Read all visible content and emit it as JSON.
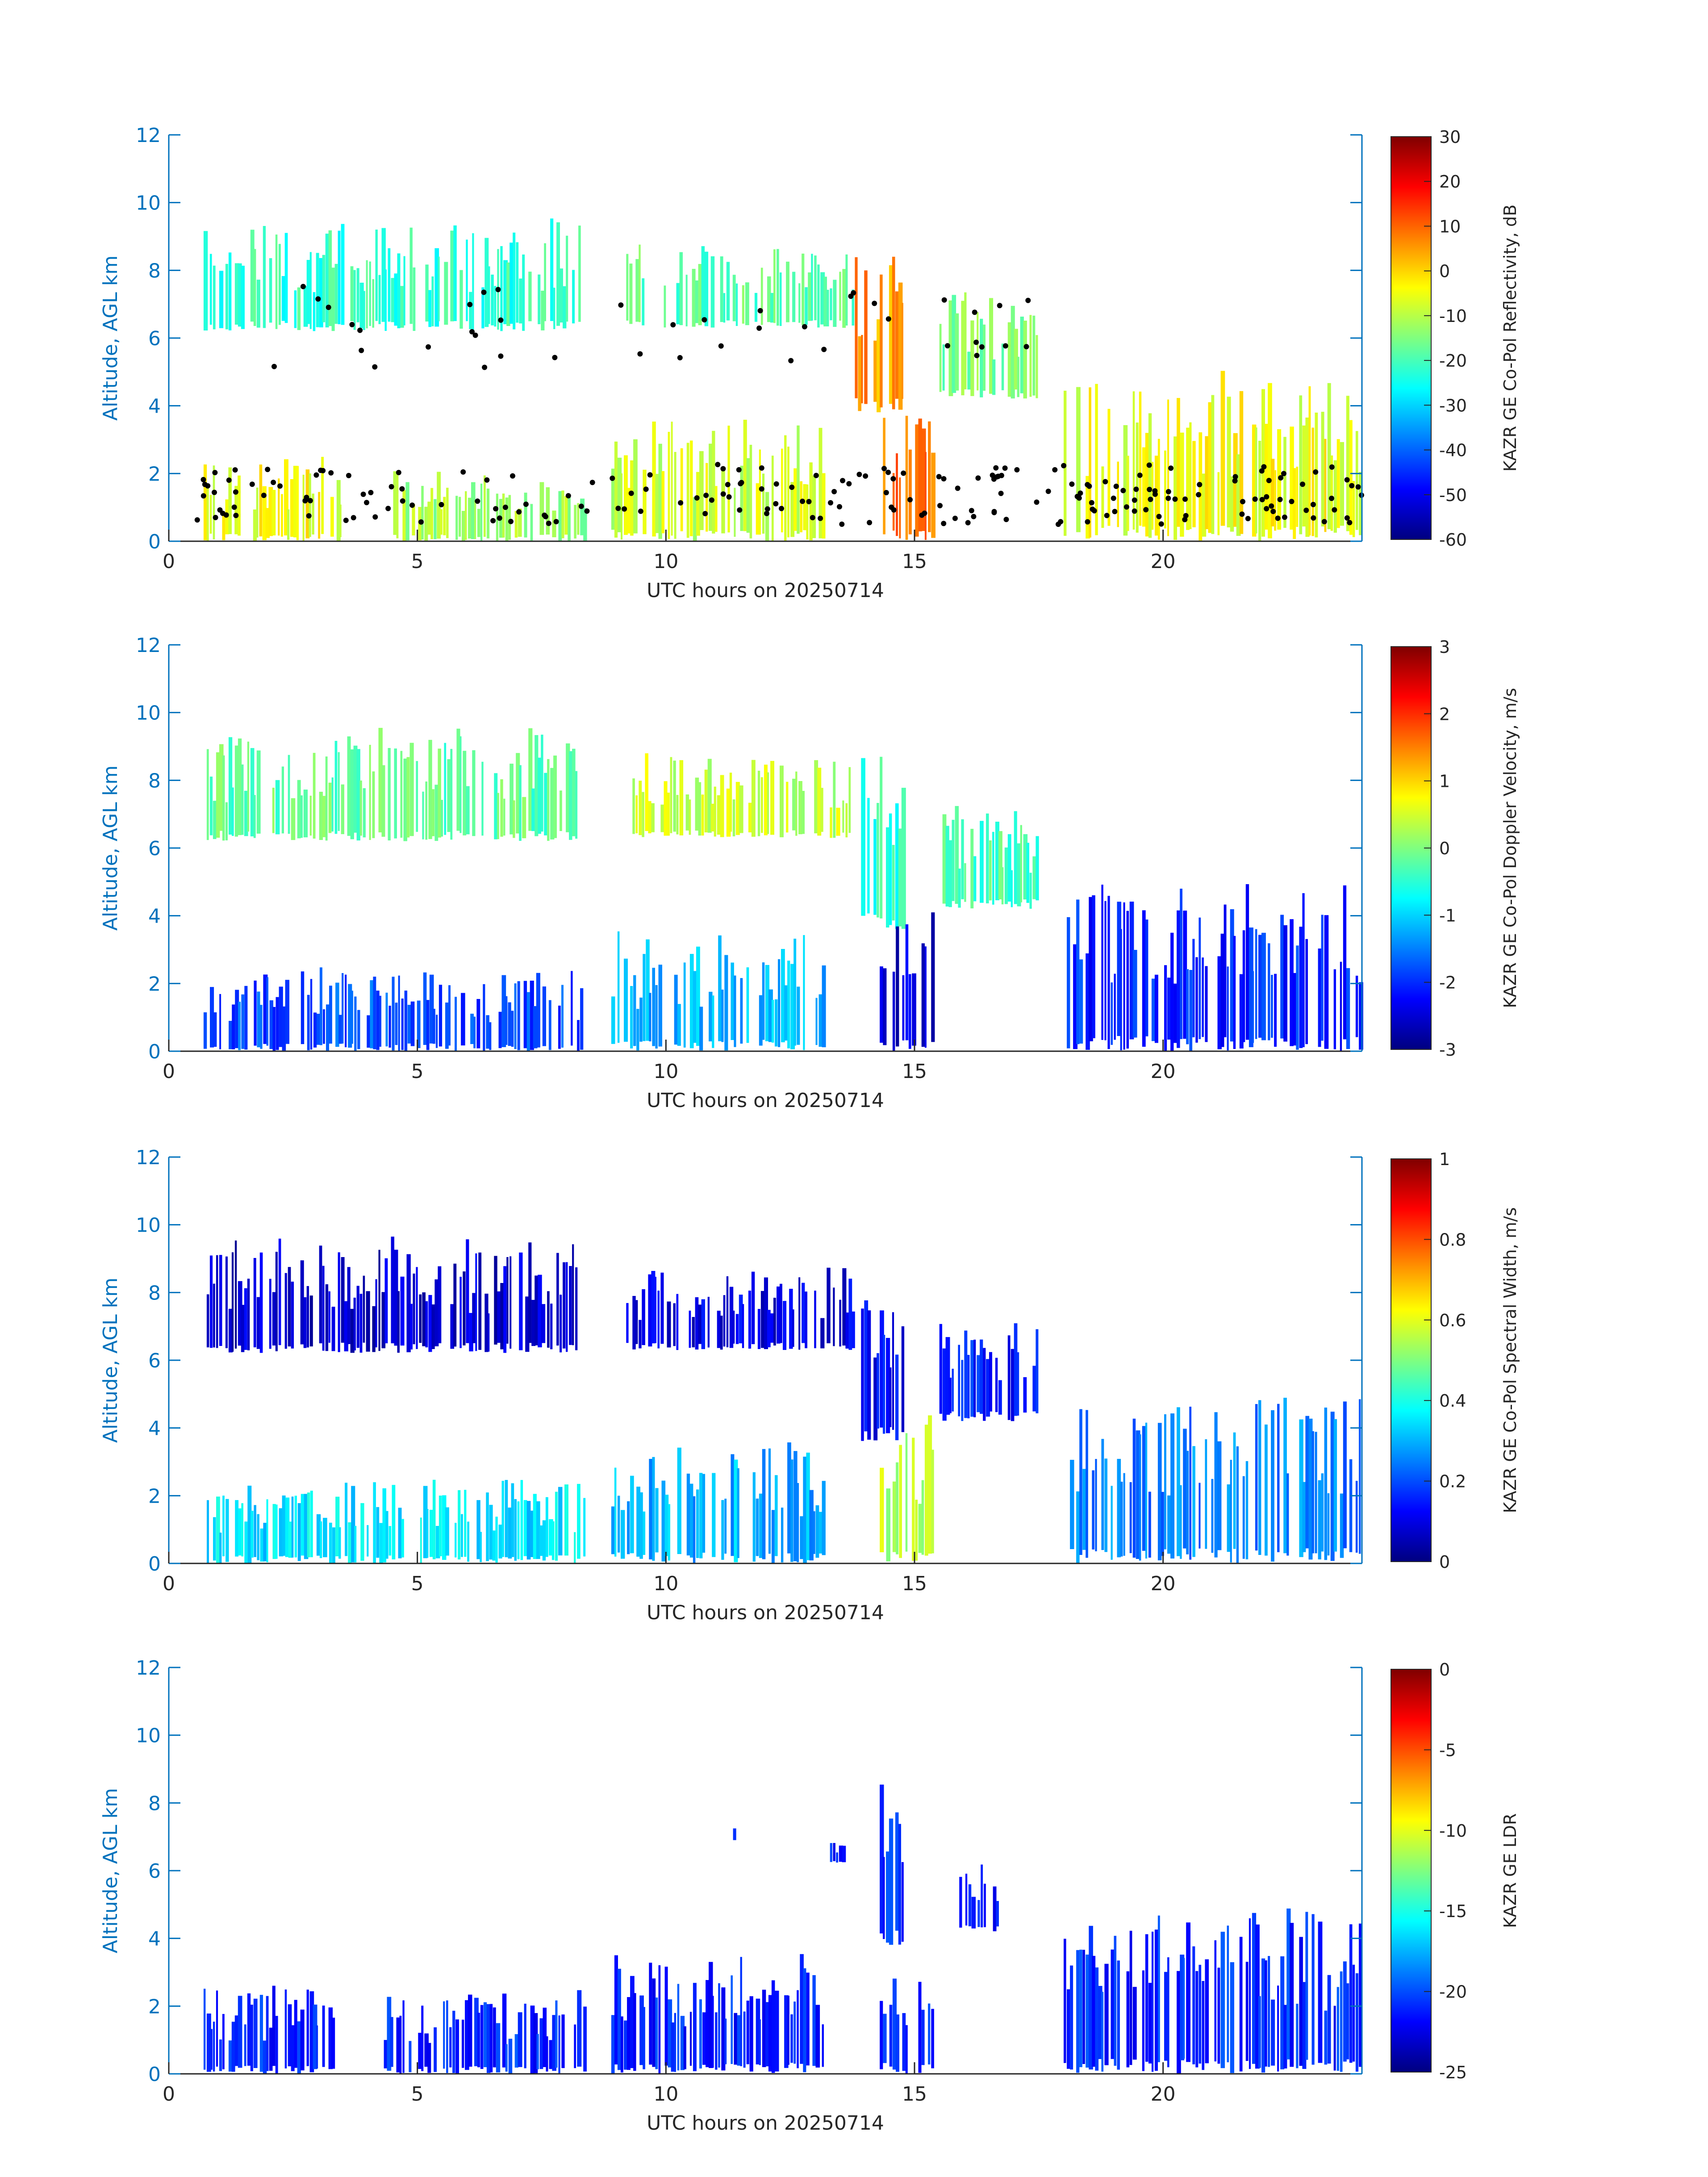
{
  "figure": {
    "colors": {
      "y_axis": "#0072bd",
      "x_axis": "#262626",
      "background": "#ffffff",
      "cloud_top_markers": "#000000"
    }
  },
  "chart_data": [
    {
      "type": "heatmap",
      "title": "",
      "xlabel": "UTC hours on 20250714",
      "ylabel": "Altitude, AGL km",
      "xlim": [
        0,
        24
      ],
      "ylim": [
        0,
        12
      ],
      "xticks": [
        "0",
        "5",
        "10",
        "15",
        "20"
      ],
      "yticks": [
        "0",
        "2",
        "4",
        "6",
        "8",
        "10",
        "12"
      ],
      "colorbar": {
        "label": "KAZR GE Co-Pol Reflectivity, dB",
        "min": -60,
        "max": 30,
        "ticks": [
          "30",
          "20",
          "10",
          "0",
          "-10",
          "-20",
          "-30",
          "-40",
          "-50",
          "-60"
        ],
        "colormap": "jet"
      },
      "overlay": "cloud-top markers (black dots)",
      "cloud_regions": [
        {
          "x": [
            0.7,
            8.3
          ],
          "y": [
            6.2,
            9.3
          ],
          "value": -22
        },
        {
          "x": [
            9.2,
            13.8
          ],
          "y": [
            6.3,
            8.6
          ],
          "value": -18
        },
        {
          "x": [
            13.8,
            14.8
          ],
          "y": [
            3.8,
            8.4
          ],
          "value": 5
        },
        {
          "x": [
            15.5,
            17.5
          ],
          "y": [
            4.2,
            7.1
          ],
          "value": -15
        },
        {
          "x": [
            0.7,
            3.5
          ],
          "y": [
            0,
            2.3
          ],
          "value": -5
        },
        {
          "x": [
            4.2,
            8.4
          ],
          "y": [
            0,
            2.0
          ],
          "value": -12
        },
        {
          "x": [
            8.9,
            13.2
          ],
          "y": [
            0,
            3.4
          ],
          "value": -8
        },
        {
          "x": [
            14.3,
            15.4
          ],
          "y": [
            0,
            3.9
          ],
          "value": 8
        },
        {
          "x": [
            18.0,
            24.0
          ],
          "y": [
            0,
            4.6
          ],
          "value": -5
        }
      ]
    },
    {
      "type": "heatmap",
      "title": "",
      "xlabel": "UTC hours on 20250714",
      "ylabel": "Altitude, AGL km",
      "xlim": [
        0,
        24
      ],
      "ylim": [
        0,
        12
      ],
      "xticks": [
        "0",
        "5",
        "10",
        "15",
        "20"
      ],
      "yticks": [
        "0",
        "2",
        "4",
        "6",
        "8",
        "10",
        "12"
      ],
      "colorbar": {
        "label": "KAZR GE Co-Pol Doppler Velocity, m/s",
        "min": -3,
        "max": 3,
        "ticks": [
          "3",
          "2",
          "1",
          "0",
          "-1",
          "-2",
          "-3"
        ],
        "colormap": "jet"
      },
      "cloud_regions": [
        {
          "x": [
            0.7,
            8.3
          ],
          "y": [
            6.2,
            9.3
          ],
          "value": -0.2
        },
        {
          "x": [
            9.2,
            13.8
          ],
          "y": [
            6.3,
            8.6
          ],
          "value": 0.4
        },
        {
          "x": [
            13.8,
            14.8
          ],
          "y": [
            3.6,
            8.4
          ],
          "value": -0.5
        },
        {
          "x": [
            15.5,
            17.5
          ],
          "y": [
            4.2,
            7.1
          ],
          "value": -0.3
        },
        {
          "x": [
            0.7,
            8.4
          ],
          "y": [
            0,
            2.3
          ],
          "value": -1.8
        },
        {
          "x": [
            8.9,
            13.2
          ],
          "y": [
            0,
            3.4
          ],
          "value": -1.2
        },
        {
          "x": [
            14.3,
            15.4
          ],
          "y": [
            0,
            4.1
          ],
          "value": -2.5
        },
        {
          "x": [
            18.0,
            24.0
          ],
          "y": [
            0,
            4.6
          ],
          "value": -2.0
        }
      ]
    },
    {
      "type": "heatmap",
      "title": "",
      "xlabel": "UTC hours on 20250714",
      "ylabel": "Altitude, AGL km",
      "xlim": [
        0,
        24
      ],
      "ylim": [
        0,
        12
      ],
      "xticks": [
        "0",
        "5",
        "10",
        "15",
        "20"
      ],
      "yticks": [
        "0",
        "2",
        "4",
        "6",
        "8",
        "10",
        "12"
      ],
      "colorbar": {
        "label": "KAZR GE Co-Pol Spectral Width, m/s",
        "min": 0,
        "max": 1,
        "ticks": [
          "1",
          "0.8",
          "0.6",
          "0.4",
          "0.2",
          "0"
        ],
        "colormap": "jet"
      },
      "cloud_regions": [
        {
          "x": [
            0.7,
            8.3
          ],
          "y": [
            6.2,
            9.4
          ],
          "value": 0.08
        },
        {
          "x": [
            9.2,
            13.8
          ],
          "y": [
            6.3,
            8.6
          ],
          "value": 0.1
        },
        {
          "x": [
            13.8,
            14.8
          ],
          "y": [
            3.6,
            8.4
          ],
          "value": 0.12
        },
        {
          "x": [
            15.5,
            17.5
          ],
          "y": [
            4.2,
            7.1
          ],
          "value": 0.15
        },
        {
          "x": [
            0.7,
            8.4
          ],
          "y": [
            0,
            2.4
          ],
          "value": 0.35
        },
        {
          "x": [
            8.9,
            13.2
          ],
          "y": [
            0,
            3.4
          ],
          "value": 0.3
        },
        {
          "x": [
            14.3,
            15.4
          ],
          "y": [
            0,
            4.1
          ],
          "value": 0.55
        },
        {
          "x": [
            18.0,
            24.0
          ],
          "y": [
            0,
            4.6
          ],
          "value": 0.25
        }
      ]
    },
    {
      "type": "heatmap",
      "title": "",
      "xlabel": "UTC hours on 20250714",
      "ylabel": "Altitude, AGL km",
      "xlim": [
        0,
        24
      ],
      "ylim": [
        0,
        12
      ],
      "xticks": [
        "0",
        "5",
        "10",
        "15",
        "20"
      ],
      "yticks": [
        "0",
        "2",
        "4",
        "6",
        "8",
        "10",
        "12"
      ],
      "colorbar": {
        "label": "KAZR GE LDR",
        "min": -25,
        "max": 0,
        "ticks": [
          "0",
          "-5",
          "-10",
          "-15",
          "-20",
          "-25"
        ],
        "colormap": "jet"
      },
      "cloud_regions": [
        {
          "x": [
            11.3,
            11.4
          ],
          "y": [
            6.9,
            7.3
          ],
          "value": -21
        },
        {
          "x": [
            13.3,
            13.6
          ],
          "y": [
            6.2,
            7.0
          ],
          "value": -21
        },
        {
          "x": [
            14.3,
            14.8
          ],
          "y": [
            3.8,
            8.2
          ],
          "value": -21
        },
        {
          "x": [
            15.9,
            16.7
          ],
          "y": [
            4.2,
            6.1
          ],
          "value": -21
        },
        {
          "x": [
            0.7,
            3.4
          ],
          "y": [
            0,
            2.4
          ],
          "value": -21
        },
        {
          "x": [
            4.2,
            8.4
          ],
          "y": [
            0,
            2.3
          ],
          "value": -21
        },
        {
          "x": [
            8.9,
            13.2
          ],
          "y": [
            0,
            3.3
          ],
          "value": -21
        },
        {
          "x": [
            14.3,
            15.4
          ],
          "y": [
            0,
            3.2
          ],
          "value": -21
        },
        {
          "x": [
            18.0,
            24.0
          ],
          "y": [
            0,
            4.5
          ],
          "value": -21
        }
      ]
    }
  ]
}
